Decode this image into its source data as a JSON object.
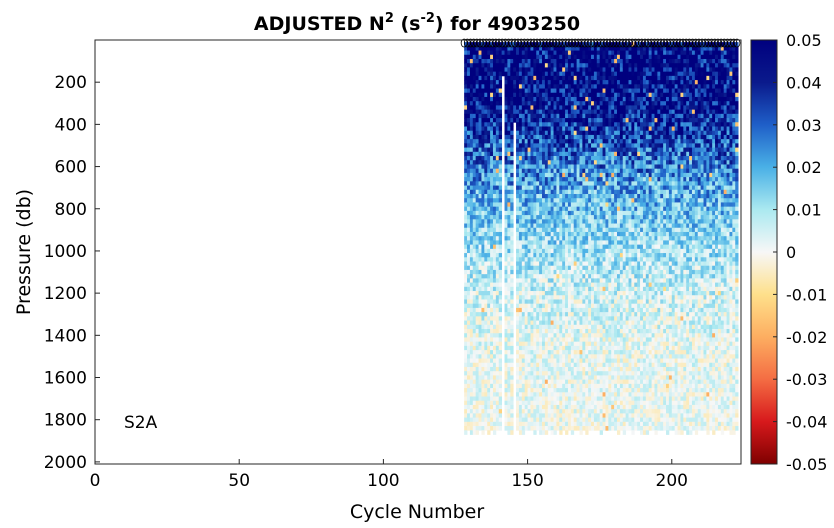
{
  "chart_data": {
    "type": "heatmap",
    "title": {
      "prefix": "ADJUSTED N",
      "sup1": "2",
      "mid": " (s",
      "sup2": "-2",
      "suffix": ") for 4903250"
    },
    "xlabel": "Cycle Number",
    "ylabel": "Pressure (db)",
    "annotation": "S2A",
    "xlim": [
      0,
      224
    ],
    "ylim": [
      2010,
      0
    ],
    "xticks": [
      0,
      50,
      100,
      150,
      200
    ],
    "yticks": [
      200,
      400,
      600,
      800,
      1000,
      1200,
      1400,
      1600,
      1800,
      2000
    ],
    "clim": [
      -0.05,
      0.05
    ],
    "cticks": [
      "0.05",
      "0.04",
      "0.03",
      "0.02",
      "0.01",
      "0",
      "-0.01",
      "-0.02",
      "-0.03",
      "-0.04",
      "-0.05"
    ],
    "colormap": [
      "#7f0000",
      "#d7191c",
      "#f46d43",
      "#fdae61",
      "#fee08b",
      "#f7f7f7",
      "#abe9f0",
      "#4ab0e6",
      "#1f5fc8",
      "#0a1a8c",
      "#00007f"
    ],
    "grid": false,
    "data_cycle_range": [
      128,
      223
    ],
    "gaps": [
      {
        "cycle_start": 141,
        "cycle_end": 142.5,
        "pressure_from": 160
      },
      {
        "cycle_start": 144.5,
        "cycle_end": 146,
        "pressure_from": 380
      }
    ],
    "profile_bottom_db": 1860,
    "mean_profile": [
      {
        "pressure": 0,
        "n2": 0.05
      },
      {
        "pressure": 300,
        "n2": 0.045
      },
      {
        "pressure": 600,
        "n2": 0.025
      },
      {
        "pressure": 900,
        "n2": 0.013
      },
      {
        "pressure": 1200,
        "n2": 0.005
      },
      {
        "pressure": 1500,
        "n2": 0.002
      },
      {
        "pressure": 1860,
        "n2": 0.001
      }
    ],
    "surface_marker": "o"
  }
}
